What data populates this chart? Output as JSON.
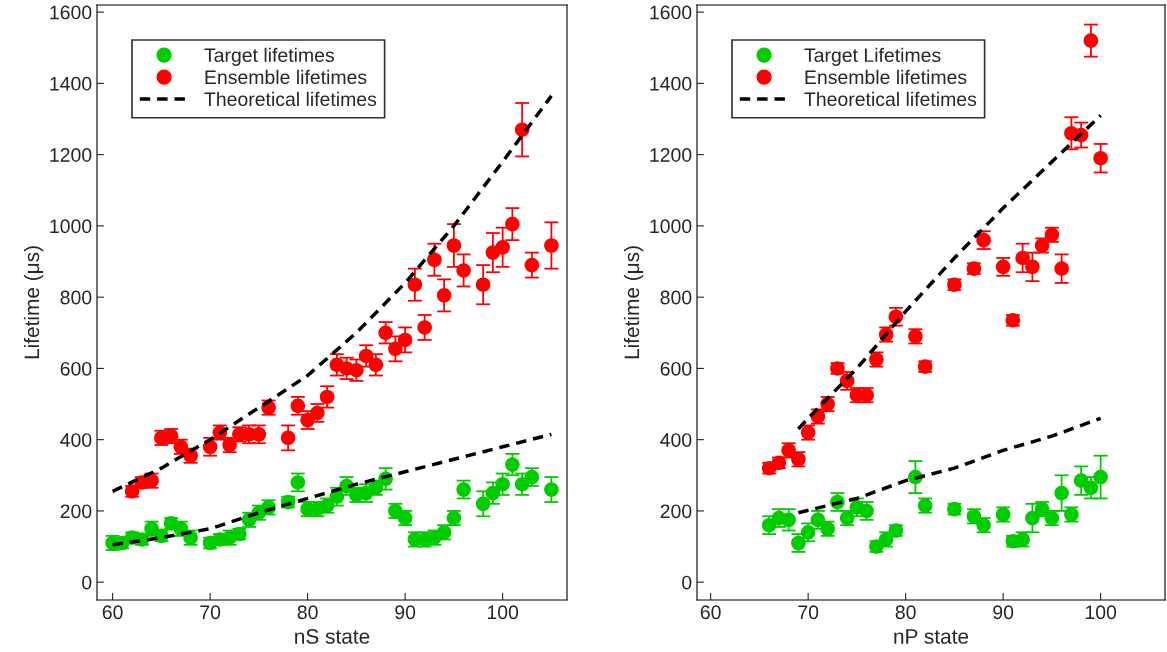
{
  "chart_data": [
    {
      "type": "scatter",
      "xlabel": "nS state",
      "ylabel": "Lifetime (μs)",
      "xlim": [
        58.4,
        106.6
      ],
      "ylim": [
        -50,
        1620
      ],
      "xticks": [
        60,
        70,
        80,
        90,
        100
      ],
      "yticks": [
        0,
        200,
        400,
        600,
        800,
        1000,
        1200,
        1400,
        1600
      ],
      "grid": false,
      "legend": "top left",
      "marker": "circle",
      "series": [
        {
          "name": "Target lifetimes",
          "color": "#00cc00",
          "x": [
            60,
            61,
            62,
            63,
            64,
            65,
            66,
            67,
            68,
            70,
            71,
            72,
            73,
            74,
            75,
            76,
            78,
            79,
            80,
            81,
            82,
            83,
            84,
            85,
            86,
            87,
            88,
            89,
            90,
            91,
            92,
            93,
            94,
            95,
            96,
            98,
            99,
            100,
            101,
            102,
            103,
            105
          ],
          "values": [
            110,
            110,
            125,
            120,
            150,
            130,
            165,
            150,
            125,
            110,
            120,
            125,
            135,
            175,
            195,
            210,
            225,
            280,
            205,
            205,
            215,
            240,
            270,
            245,
            250,
            265,
            290,
            200,
            180,
            120,
            120,
            125,
            140,
            180,
            260,
            220,
            250,
            275,
            330,
            275,
            295,
            260
          ],
          "errors": [
            20,
            15,
            15,
            15,
            20,
            15,
            15,
            20,
            20,
            15,
            15,
            20,
            15,
            20,
            20,
            20,
            15,
            25,
            20,
            20,
            20,
            25,
            25,
            20,
            25,
            20,
            30,
            20,
            20,
            20,
            20,
            20,
            20,
            20,
            25,
            35,
            30,
            30,
            30,
            30,
            25,
            35
          ]
        },
        {
          "name": "Ensemble lifetimes",
          "color": "#ff0000",
          "x": [
            62,
            63,
            64,
            65,
            66,
            67,
            68,
            70,
            71,
            72,
            73,
            74,
            75,
            76,
            78,
            79,
            80,
            81,
            82,
            83,
            84,
            85,
            86,
            87,
            88,
            89,
            90,
            91,
            92,
            93,
            94,
            95,
            96,
            98,
            99,
            100,
            101,
            102,
            103,
            105
          ],
          "values": [
            255,
            280,
            285,
            405,
            410,
            380,
            355,
            380,
            420,
            385,
            415,
            415,
            415,
            490,
            405,
            495,
            455,
            475,
            520,
            610,
            600,
            595,
            635,
            610,
            700,
            655,
            680,
            835,
            715,
            905,
            805,
            945,
            875,
            835,
            925,
            940,
            1005,
            1270,
            890,
            945
          ],
          "errors": [
            15,
            15,
            20,
            20,
            20,
            20,
            20,
            25,
            20,
            20,
            20,
            25,
            25,
            20,
            35,
            25,
            25,
            25,
            30,
            30,
            30,
            30,
            30,
            30,
            30,
            35,
            35,
            45,
            35,
            45,
            45,
            60,
            45,
            55,
            55,
            55,
            45,
            75,
            35,
            65
          ]
        },
        {
          "name": "Theoretical lifetimes",
          "type": "line",
          "color": "#000000",
          "line_style": "dashed",
          "marker": "none",
          "x": [
            60,
            65,
            70,
            75,
            80,
            85,
            90,
            95,
            100,
            105
          ],
          "values": [
            255,
            320,
            400,
            490,
            580,
            700,
            840,
            1000,
            1180,
            1365
          ]
        },
        {
          "type": "line",
          "color": "#000000",
          "line_style": "dashed",
          "marker": "none",
          "x": [
            60,
            65,
            70,
            75,
            80,
            85,
            90,
            95,
            100,
            105
          ],
          "values": [
            105,
            125,
            150,
            195,
            235,
            275,
            310,
            345,
            380,
            415
          ]
        }
      ]
    },
    {
      "type": "scatter",
      "xlabel": "nP state",
      "ylabel": "Lifetime (μs)",
      "xlim": [
        58.6,
        106.6
      ],
      "ylim": [
        -50,
        1620
      ],
      "xticks": [
        60,
        70,
        80,
        90,
        100
      ],
      "yticks": [
        0,
        200,
        400,
        600,
        800,
        1000,
        1200,
        1400,
        1600
      ],
      "grid": false,
      "legend": "top left",
      "marker": "circle",
      "series": [
        {
          "name": "Target Lifetimes",
          "color": "#00cc00",
          "x": [
            66,
            67,
            68,
            69,
            70,
            71,
            72,
            73,
            74,
            75,
            76,
            77,
            78,
            79,
            81,
            82,
            85,
            87,
            88,
            90,
            91,
            92,
            93,
            94,
            95,
            96,
            97,
            98,
            99,
            100
          ],
          "values": [
            160,
            180,
            175,
            110,
            140,
            175,
            150,
            225,
            180,
            210,
            200,
            100,
            120,
            145,
            295,
            215,
            205,
            185,
            160,
            190,
            115,
            120,
            180,
            205,
            180,
            250,
            190,
            285,
            265,
            295
          ],
          "errors": [
            25,
            25,
            30,
            25,
            25,
            25,
            20,
            25,
            20,
            25,
            25,
            15,
            20,
            15,
            45,
            20,
            15,
            20,
            20,
            20,
            15,
            20,
            40,
            20,
            20,
            50,
            20,
            40,
            30,
            60
          ]
        },
        {
          "name": "Ensemble lifetimes",
          "color": "#ff0000",
          "x": [
            66,
            67,
            68,
            69,
            70,
            71,
            72,
            73,
            74,
            75,
            76,
            77,
            78,
            79,
            81,
            82,
            85,
            87,
            88,
            90,
            91,
            92,
            93,
            94,
            95,
            96,
            97,
            98,
            99,
            100
          ],
          "values": [
            320,
            335,
            370,
            345,
            420,
            465,
            500,
            600,
            565,
            525,
            525,
            625,
            695,
            745,
            690,
            605,
            835,
            880,
            960,
            885,
            735,
            910,
            885,
            945,
            975,
            880,
            1260,
            1255,
            1520,
            1190
          ],
          "errors": [
            15,
            15,
            20,
            20,
            20,
            20,
            20,
            15,
            25,
            20,
            20,
            20,
            20,
            25,
            20,
            15,
            15,
            15,
            25,
            25,
            15,
            40,
            40,
            20,
            20,
            40,
            45,
            35,
            45,
            40
          ]
        },
        {
          "name": "Theoretical lifetimes",
          "type": "line",
          "color": "#000000",
          "line_style": "dashed",
          "marker": "none",
          "x": [
            69,
            70,
            75,
            80,
            85,
            90,
            95,
            100
          ],
          "values": [
            430,
            460,
            600,
            760,
            910,
            1050,
            1180,
            1310
          ]
        },
        {
          "type": "line",
          "color": "#000000",
          "line_style": "dashed",
          "marker": "none",
          "x": [
            69,
            75,
            80,
            85,
            90,
            95,
            100
          ],
          "values": [
            195,
            235,
            285,
            320,
            370,
            410,
            460
          ]
        }
      ]
    }
  ]
}
